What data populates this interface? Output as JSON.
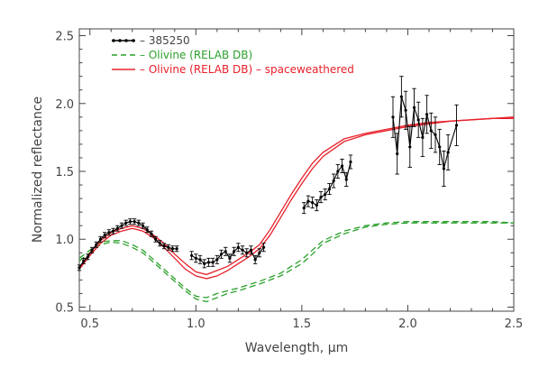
{
  "chart_data": {
    "type": "line",
    "xlabel": "Wavelength, μm",
    "ylabel": "Normalized reflectance",
    "xlim": [
      0.45,
      2.5
    ],
    "ylim": [
      0.47,
      2.55
    ],
    "x_ticks": [
      {
        "value": 0.5,
        "label": "0.5"
      },
      {
        "value": 1.0,
        "label": "1.0"
      },
      {
        "value": 1.5,
        "label": "1.5"
      },
      {
        "value": 2.0,
        "label": "2.0"
      },
      {
        "value": 2.5,
        "label": "2.5"
      }
    ],
    "y_ticks": [
      {
        "value": 0.5,
        "label": "0.5"
      },
      {
        "value": 1.0,
        "label": "1.0"
      },
      {
        "value": 1.5,
        "label": "1.5"
      },
      {
        "value": 2.0,
        "label": "2.0"
      },
      {
        "value": 2.5,
        "label": "2.5"
      }
    ],
    "legend": {
      "position": "top-left",
      "entries": [
        {
          "label": "– 385250",
          "color": "#000000",
          "style": "solid-markers"
        },
        {
          "label": "– Olivine (RELAB DB)",
          "color": "#2ca02c",
          "style": "dashed"
        },
        {
          "label": "– Olivine (RELAB DB) – spaceweathered",
          "color": "#e8202a",
          "style": "solid"
        }
      ]
    },
    "series": [
      {
        "key": "asteroid",
        "color": "#000000",
        "segments": [
          [
            [
              0.45,
              0.79,
              0.02
            ],
            [
              0.47,
              0.84,
              0.02
            ],
            [
              0.49,
              0.87,
              0.02
            ],
            [
              0.51,
              0.92,
              0.02
            ],
            [
              0.53,
              0.96,
              0.02
            ],
            [
              0.55,
              1.0,
              0.02
            ],
            [
              0.57,
              1.03,
              0.02
            ],
            [
              0.59,
              1.05,
              0.02
            ],
            [
              0.61,
              1.06,
              0.02
            ],
            [
              0.63,
              1.08,
              0.02
            ],
            [
              0.65,
              1.1,
              0.02
            ],
            [
              0.67,
              1.12,
              0.02
            ],
            [
              0.69,
              1.13,
              0.02
            ],
            [
              0.71,
              1.13,
              0.02
            ],
            [
              0.73,
              1.12,
              0.02
            ],
            [
              0.75,
              1.1,
              0.02
            ],
            [
              0.77,
              1.07,
              0.02
            ],
            [
              0.79,
              1.04,
              0.02
            ],
            [
              0.81,
              1.0,
              0.02
            ],
            [
              0.83,
              0.97,
              0.02
            ],
            [
              0.85,
              0.95,
              0.02
            ],
            [
              0.87,
              0.94,
              0.02
            ],
            [
              0.89,
              0.93,
              0.02
            ],
            [
              0.91,
              0.93,
              0.02
            ]
          ],
          [
            [
              0.98,
              0.88,
              0.03
            ],
            [
              1.0,
              0.86,
              0.03
            ],
            [
              1.02,
              0.85,
              0.03
            ],
            [
              1.04,
              0.82,
              0.03
            ],
            [
              1.06,
              0.83,
              0.03
            ],
            [
              1.08,
              0.83,
              0.03
            ],
            [
              1.1,
              0.85,
              0.03
            ],
            [
              1.12,
              0.89,
              0.03
            ],
            [
              1.14,
              0.91,
              0.03
            ],
            [
              1.16,
              0.86,
              0.03
            ],
            [
              1.18,
              0.91,
              0.03
            ],
            [
              1.2,
              0.94,
              0.03
            ],
            [
              1.22,
              0.92,
              0.03
            ],
            [
              1.24,
              0.9,
              0.03
            ],
            [
              1.26,
              0.92,
              0.03
            ],
            [
              1.28,
              0.85,
              0.03
            ],
            [
              1.3,
              0.9,
              0.03
            ],
            [
              1.32,
              0.94,
              0.03
            ]
          ],
          [
            [
              1.51,
              1.23,
              0.04
            ],
            [
              1.53,
              1.28,
              0.04
            ],
            [
              1.55,
              1.27,
              0.04
            ],
            [
              1.57,
              1.25,
              0.04
            ],
            [
              1.59,
              1.31,
              0.04
            ],
            [
              1.61,
              1.33,
              0.04
            ],
            [
              1.63,
              1.37,
              0.04
            ],
            [
              1.65,
              1.43,
              0.05
            ],
            [
              1.67,
              1.5,
              0.05
            ],
            [
              1.69,
              1.54,
              0.05
            ],
            [
              1.71,
              1.44,
              0.05
            ],
            [
              1.73,
              1.57,
              0.05
            ]
          ],
          [
            [
              1.93,
              1.9,
              0.15
            ],
            [
              1.95,
              1.63,
              0.15
            ],
            [
              1.97,
              2.05,
              0.15
            ],
            [
              1.99,
              1.95,
              0.14
            ],
            [
              2.01,
              1.68,
              0.15
            ],
            [
              2.03,
              1.97,
              0.14
            ],
            [
              2.05,
              1.88,
              0.13
            ],
            [
              2.07,
              1.75,
              0.14
            ],
            [
              2.09,
              1.92,
              0.14
            ],
            [
              2.11,
              1.8,
              0.13
            ],
            [
              2.13,
              1.77,
              0.13
            ],
            [
              2.15,
              1.68,
              0.13
            ],
            [
              2.17,
              1.52,
              0.13
            ],
            [
              2.19,
              1.64,
              0.13
            ],
            [
              2.23,
              1.84,
              0.15
            ]
          ]
        ]
      },
      {
        "key": "olivine",
        "color": "#2ca02c",
        "dashed": true,
        "x": [
          0.45,
          0.5,
          0.55,
          0.6,
          0.65,
          0.7,
          0.75,
          0.8,
          0.85,
          0.9,
          0.95,
          1.0,
          1.05,
          1.1,
          1.15,
          1.2,
          1.3,
          1.4,
          1.5,
          1.55,
          1.6,
          1.7,
          1.8,
          1.9,
          2.0,
          2.1,
          2.2,
          2.3,
          2.4,
          2.5
        ],
        "y": [
          [
            0.86,
            0.92,
            0.98,
            0.99,
            0.99,
            0.96,
            0.92,
            0.85,
            0.78,
            0.71,
            0.64,
            0.58,
            0.57,
            0.6,
            0.62,
            0.64,
            0.69,
            0.75,
            0.85,
            0.92,
            0.99,
            1.06,
            1.1,
            1.12,
            1.13,
            1.13,
            1.13,
            1.13,
            1.13,
            1.12
          ],
          [
            0.84,
            0.9,
            0.96,
            0.98,
            0.97,
            0.94,
            0.9,
            0.83,
            0.76,
            0.69,
            0.62,
            0.56,
            0.54,
            0.57,
            0.6,
            0.62,
            0.67,
            0.73,
            0.82,
            0.89,
            0.97,
            1.04,
            1.09,
            1.11,
            1.12,
            1.12,
            1.12,
            1.12,
            1.12,
            1.12
          ]
        ]
      },
      {
        "key": "olivine-sw",
        "color": "#e8202a",
        "dashed": false,
        "x": [
          0.45,
          0.5,
          0.55,
          0.6,
          0.65,
          0.7,
          0.75,
          0.8,
          0.85,
          0.9,
          0.95,
          1.0,
          1.05,
          1.1,
          1.15,
          1.2,
          1.25,
          1.3,
          1.35,
          1.4,
          1.45,
          1.5,
          1.55,
          1.6,
          1.7,
          1.8,
          1.9,
          2.0,
          2.1,
          2.2,
          2.3,
          2.4,
          2.5
        ],
        "y": [
          [
            0.79,
            0.9,
            0.99,
            1.05,
            1.08,
            1.1,
            1.08,
            1.03,
            0.97,
            0.89,
            0.82,
            0.76,
            0.74,
            0.77,
            0.8,
            0.85,
            0.9,
            0.96,
            1.07,
            1.2,
            1.33,
            1.45,
            1.56,
            1.64,
            1.74,
            1.78,
            1.81,
            1.84,
            1.86,
            1.87,
            1.88,
            1.89,
            1.9
          ],
          [
            0.78,
            0.88,
            0.97,
            1.03,
            1.06,
            1.08,
            1.06,
            1.01,
            0.94,
            0.86,
            0.78,
            0.73,
            0.71,
            0.73,
            0.77,
            0.82,
            0.87,
            0.93,
            1.03,
            1.16,
            1.29,
            1.41,
            1.52,
            1.61,
            1.72,
            1.77,
            1.8,
            1.83,
            1.85,
            1.87,
            1.88,
            1.89,
            1.89
          ]
        ]
      }
    ]
  }
}
